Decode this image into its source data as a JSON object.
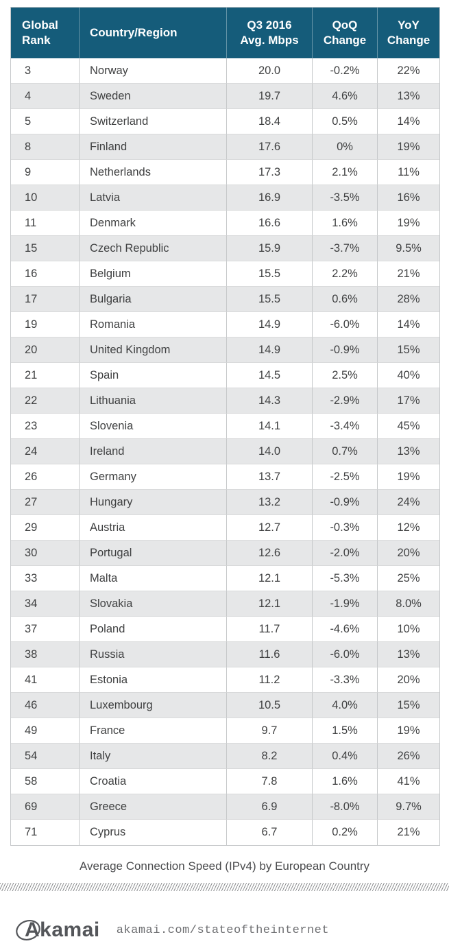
{
  "table": {
    "headers_display": [
      "Global\nRank",
      "Country/Region",
      "Q3 2016\nAvg. Mbps",
      "QoQ\nChange",
      "YoY\nChange"
    ]
  },
  "chart_data": {
    "type": "table",
    "title": "Average Connection Speed (IPv4) by European Country",
    "columns": [
      "Global Rank",
      "Country/Region",
      "Q3 2016 Avg. Mbps",
      "QoQ Change",
      "YoY Change"
    ],
    "rows": [
      [
        "3",
        "Norway",
        "20.0",
        "-0.2%",
        "22%"
      ],
      [
        "4",
        "Sweden",
        "19.7",
        "4.6%",
        "13%"
      ],
      [
        "5",
        "Switzerland",
        "18.4",
        "0.5%",
        "14%"
      ],
      [
        "8",
        "Finland",
        "17.6",
        "0%",
        "19%"
      ],
      [
        "9",
        "Netherlands",
        "17.3",
        "2.1%",
        "11%"
      ],
      [
        "10",
        "Latvia",
        "16.9",
        "-3.5%",
        "16%"
      ],
      [
        "11",
        "Denmark",
        "16.6",
        "1.6%",
        "19%"
      ],
      [
        "15",
        "Czech Republic",
        "15.9",
        "-3.7%",
        "9.5%"
      ],
      [
        "16",
        "Belgium",
        "15.5",
        "2.2%",
        "21%"
      ],
      [
        "17",
        "Bulgaria",
        "15.5",
        "0.6%",
        "28%"
      ],
      [
        "19",
        "Romania",
        "14.9",
        "-6.0%",
        "14%"
      ],
      [
        "20",
        "United Kingdom",
        "14.9",
        "-0.9%",
        "15%"
      ],
      [
        "21",
        "Spain",
        "14.5",
        "2.5%",
        "40%"
      ],
      [
        "22",
        "Lithuania",
        "14.3",
        "-2.9%",
        "17%"
      ],
      [
        "23",
        "Slovenia",
        "14.1",
        "-3.4%",
        "45%"
      ],
      [
        "24",
        "Ireland",
        "14.0",
        "0.7%",
        "13%"
      ],
      [
        "26",
        "Germany",
        "13.7",
        "-2.5%",
        "19%"
      ],
      [
        "27",
        "Hungary",
        "13.2",
        "-0.9%",
        "24%"
      ],
      [
        "29",
        "Austria",
        "12.7",
        "-0.3%",
        "12%"
      ],
      [
        "30",
        "Portugal",
        "12.6",
        "-2.0%",
        "20%"
      ],
      [
        "33",
        "Malta",
        "12.1",
        "-5.3%",
        "25%"
      ],
      [
        "34",
        "Slovakia",
        "12.1",
        "-1.9%",
        "8.0%"
      ],
      [
        "37",
        "Poland",
        "11.7",
        "-4.6%",
        "10%"
      ],
      [
        "38",
        "Russia",
        "11.6",
        "-6.0%",
        "13%"
      ],
      [
        "41",
        "Estonia",
        "11.2",
        "-3.3%",
        "20%"
      ],
      [
        "46",
        "Luxembourg",
        "10.5",
        "4.0%",
        "15%"
      ],
      [
        "49",
        "France",
        "9.7",
        "1.5%",
        "19%"
      ],
      [
        "54",
        "Italy",
        "8.2",
        "0.4%",
        "26%"
      ],
      [
        "58",
        "Croatia",
        "7.8",
        "1.6%",
        "41%"
      ],
      [
        "69",
        "Greece",
        "6.9",
        "-8.0%",
        "9.7%"
      ],
      [
        "71",
        "Cyprus",
        "6.7",
        "0.2%",
        "21%"
      ]
    ]
  },
  "caption": "Average Connection Speed (IPv4) by European Country",
  "footer": {
    "logo_text": "Akamai",
    "url": "akamai.com/stateoftheinternet"
  },
  "colors": {
    "header_bg": "#155C7A",
    "header_text": "#FFFFFF",
    "row_alt_bg": "#E6E7E8",
    "body_text": "#3F4041"
  }
}
